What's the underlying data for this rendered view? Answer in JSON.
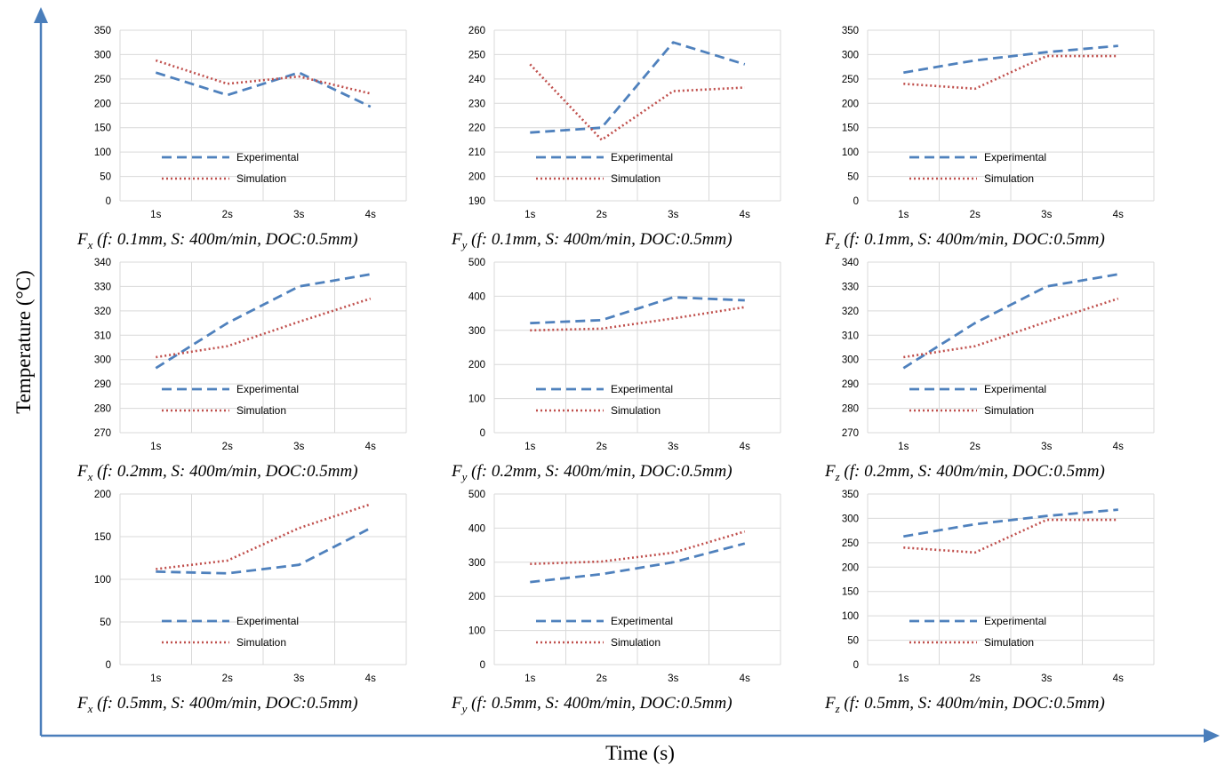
{
  "figure": {
    "ylabel": "Temperature (°C)",
    "xlabel": "Time (s)"
  },
  "legend": {
    "experimental": "Experimental",
    "simulation": "Simulation"
  },
  "colors": {
    "experimental": "#4f81bd",
    "simulation": "#c0504d",
    "grid": "#d9d9d9",
    "axis_arrow": "#4a7ebb"
  },
  "chart_data": [
    {
      "type": "line",
      "caption_force": "F",
      "caption_sub": "x",
      "caption_rest": " (f: 0.1mm, S: 400m/min, DOC:0.5mm)",
      "categories": [
        "1s",
        "2s",
        "3s",
        "4s"
      ],
      "ylim": [
        0,
        350
      ],
      "yticks": [
        0,
        50,
        100,
        150,
        200,
        250,
        300,
        350
      ],
      "series": [
        {
          "name": "Experimental",
          "values": [
            263,
            217,
            263,
            193
          ]
        },
        {
          "name": "Simulation",
          "values": [
            288,
            240,
            255,
            220
          ]
        }
      ],
      "grid": true,
      "legend_position": "left"
    },
    {
      "type": "line",
      "caption_force": "F",
      "caption_sub": "y",
      "caption_rest": " (f: 0.1mm, S: 400m/min, DOC:0.5mm)",
      "categories": [
        "1s",
        "2s",
        "3s",
        "4s"
      ],
      "ylim": [
        190,
        260
      ],
      "yticks": [
        190,
        200,
        210,
        220,
        230,
        240,
        250,
        260
      ],
      "series": [
        {
          "name": "Experimental",
          "values": [
            218,
            220,
            255,
            246
          ]
        },
        {
          "name": "Simulation",
          "values": [
            246,
            215,
            235,
            236.5
          ]
        }
      ],
      "grid": true,
      "legend_position": "left"
    },
    {
      "type": "line",
      "caption_force": "F",
      "caption_sub": "z",
      "caption_rest": " (f: 0.1mm, S: 400m/min, DOC:0.5mm)",
      "categories": [
        "1s",
        "2s",
        "3s",
        "4s"
      ],
      "ylim": [
        0,
        350
      ],
      "yticks": [
        0,
        50,
        100,
        150,
        200,
        250,
        300,
        350
      ],
      "series": [
        {
          "name": "Experimental",
          "values": [
            263,
            288,
            305,
            318
          ]
        },
        {
          "name": "Simulation",
          "values": [
            240,
            230,
            297,
            297
          ]
        }
      ],
      "grid": true,
      "legend_position": "left"
    },
    {
      "type": "line",
      "caption_force": "F",
      "caption_sub": "x",
      "caption_rest": " (f: 0.2mm, S: 400m/min, DOC:0.5mm)",
      "categories": [
        "1s",
        "2s",
        "3s",
        "4s"
      ],
      "ylim": [
        270,
        340
      ],
      "yticks": [
        270,
        280,
        290,
        300,
        310,
        320,
        330,
        340
      ],
      "series": [
        {
          "name": "Experimental",
          "values": [
            296.5,
            315,
            330,
            335
          ]
        },
        {
          "name": "Simulation",
          "values": [
            301,
            305.5,
            315.5,
            325
          ]
        }
      ],
      "grid": true,
      "legend_position": "left"
    },
    {
      "type": "line",
      "caption_force": "F",
      "caption_sub": "y",
      "caption_rest": " (f: 0.2mm, S: 400m/min, DOC:0.5mm)",
      "categories": [
        "1s",
        "2s",
        "3s",
        "4s"
      ],
      "ylim": [
        0,
        500
      ],
      "yticks": [
        0,
        100,
        200,
        300,
        400,
        500
      ],
      "series": [
        {
          "name": "Experimental",
          "values": [
            321,
            330,
            397,
            388
          ]
        },
        {
          "name": "Simulation",
          "values": [
            300,
            305,
            335,
            368
          ]
        }
      ],
      "grid": true,
      "legend_position": "left"
    },
    {
      "type": "line",
      "caption_force": "F",
      "caption_sub": "z",
      "caption_rest": " (f: 0.2mm, S: 400m/min, DOC:0.5mm)",
      "categories": [
        "1s",
        "2s",
        "3s",
        "4s"
      ],
      "ylim": [
        270,
        340
      ],
      "yticks": [
        270,
        280,
        290,
        300,
        310,
        320,
        330,
        340
      ],
      "series": [
        {
          "name": "Experimental",
          "values": [
            296.5,
            315,
            330,
            335
          ]
        },
        {
          "name": "Simulation",
          "values": [
            301,
            305.5,
            315.5,
            325
          ]
        }
      ],
      "grid": true,
      "legend_position": "left"
    },
    {
      "type": "line",
      "caption_force": "F",
      "caption_sub": "x",
      "caption_rest": " (f: 0.5mm, S: 400m/min, DOC:0.5mm)",
      "categories": [
        "1s",
        "2s",
        "3s",
        "4s"
      ],
      "ylim": [
        0,
        200
      ],
      "yticks": [
        0,
        50,
        100,
        150,
        200
      ],
      "series": [
        {
          "name": "Experimental",
          "values": [
            109,
            107,
            117,
            160
          ]
        },
        {
          "name": "Simulation",
          "values": [
            112,
            122,
            160,
            188
          ]
        }
      ],
      "grid": true,
      "legend_position": "left"
    },
    {
      "type": "line",
      "caption_force": "F",
      "caption_sub": "y",
      "caption_rest": " (f: 0.5mm, S: 400m/min, DOC:0.5mm)",
      "categories": [
        "1s",
        "2s",
        "3s",
        "4s"
      ],
      "ylim": [
        0,
        500
      ],
      "yticks": [
        0,
        100,
        200,
        300,
        400,
        500
      ],
      "series": [
        {
          "name": "Experimental",
          "values": [
            242,
            265,
            300,
            355
          ]
        },
        {
          "name": "Simulation",
          "values": [
            295,
            302,
            328,
            390
          ]
        }
      ],
      "grid": true,
      "legend_position": "left"
    },
    {
      "type": "line",
      "caption_force": "F",
      "caption_sub": "z",
      "caption_rest": " (f: 0.5mm, S: 400m/min, DOC:0.5mm)",
      "categories": [
        "1s",
        "2s",
        "3s",
        "4s"
      ],
      "ylim": [
        0,
        350
      ],
      "yticks": [
        0,
        50,
        100,
        150,
        200,
        250,
        300,
        350
      ],
      "series": [
        {
          "name": "Experimental",
          "values": [
            263,
            288,
            305,
            318
          ]
        },
        {
          "name": "Simulation",
          "values": [
            240,
            230,
            297,
            297
          ]
        }
      ],
      "grid": true,
      "legend_position": "left"
    }
  ]
}
